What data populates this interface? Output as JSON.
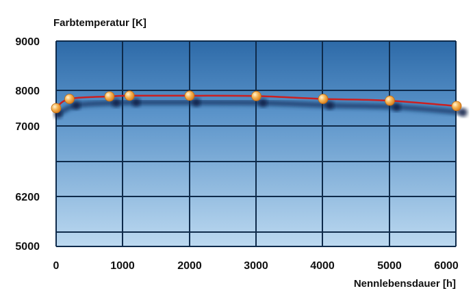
{
  "chart_data": {
    "type": "line",
    "title": "",
    "ylabel": "Farbtemperatur [K]",
    "xlabel": "Nennlebensdauer [h]",
    "x_ticks": [
      "0",
      "1000",
      "2000",
      "3000",
      "4000",
      "5000",
      "6000"
    ],
    "y_ticks": [
      "9000",
      "8000",
      "7000",
      "6200",
      "5000"
    ],
    "xlim": [
      0,
      6000
    ],
    "ylim_tick_order": "top-to-bottom",
    "grid": true,
    "series": [
      {
        "color": "#cc1f1f",
        "marker_color": "#f5a623",
        "x": [
          0,
          200,
          800,
          1100,
          2000,
          3000,
          4000,
          5000,
          6000
        ],
        "y": [
          7500,
          7760,
          7830,
          7850,
          7850,
          7840,
          7760,
          7710,
          7560
        ]
      }
    ],
    "shadow_points": [
      {
        "x": 30,
        "y": 7330
      },
      {
        "x": 300,
        "y": 7580
      },
      {
        "x": 900,
        "y": 7650
      },
      {
        "x": 1200,
        "y": 7660
      },
      {
        "x": 2100,
        "y": 7660
      },
      {
        "x": 3100,
        "y": 7650
      },
      {
        "x": 4100,
        "y": 7580
      },
      {
        "x": 5100,
        "y": 7530
      },
      {
        "x": 6100,
        "y": 7380
      }
    ]
  }
}
